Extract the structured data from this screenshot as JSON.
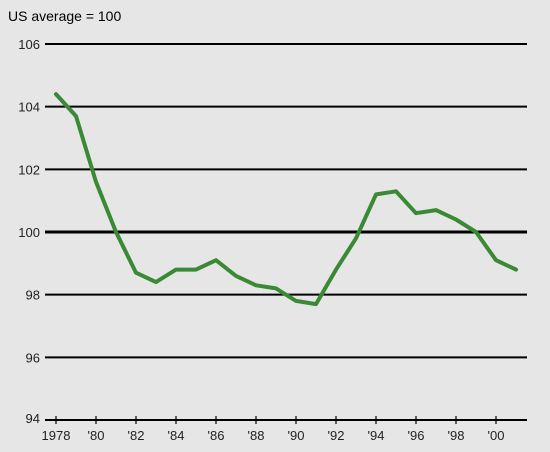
{
  "chart_data": {
    "type": "line",
    "title": "",
    "ylabel": "US average = 100",
    "xlabel": "",
    "ylim": [
      94,
      106
    ],
    "xlim": [
      1978,
      2001
    ],
    "yticks": [
      94,
      96,
      98,
      100,
      102,
      104,
      106
    ],
    "xtick_labels": [
      {
        "x": 1978,
        "label": "1978"
      },
      {
        "x": 1980,
        "label": "'80"
      },
      {
        "x": 1982,
        "label": "'82"
      },
      {
        "x": 1984,
        "label": "'84"
      },
      {
        "x": 1986,
        "label": "'86"
      },
      {
        "x": 1988,
        "label": "'88"
      },
      {
        "x": 1990,
        "label": "'90"
      },
      {
        "x": 1992,
        "label": "'92"
      },
      {
        "x": 1994,
        "label": "'94"
      },
      {
        "x": 1996,
        "label": "'96"
      },
      {
        "x": 1998,
        "label": "'98"
      },
      {
        "x": 2000,
        "label": "'00"
      }
    ],
    "grid": true,
    "line_color": "#3a8a35",
    "series": [
      {
        "x": [
          1978,
          1979,
          1980,
          1981,
          1982,
          1983,
          1984,
          1985,
          1986,
          1987,
          1988,
          1989,
          1990,
          1991,
          1992,
          1993,
          1994,
          1995,
          1996,
          1997,
          1998,
          1999,
          2000,
          2001
        ],
        "values": [
          104.4,
          103.7,
          101.6,
          100.0,
          98.7,
          98.4,
          98.8,
          98.8,
          99.1,
          98.6,
          98.3,
          98.2,
          97.8,
          97.7,
          98.8,
          99.8,
          101.2,
          101.3,
          100.6,
          100.7,
          100.4,
          100.0,
          99.1,
          98.8
        ]
      }
    ]
  }
}
